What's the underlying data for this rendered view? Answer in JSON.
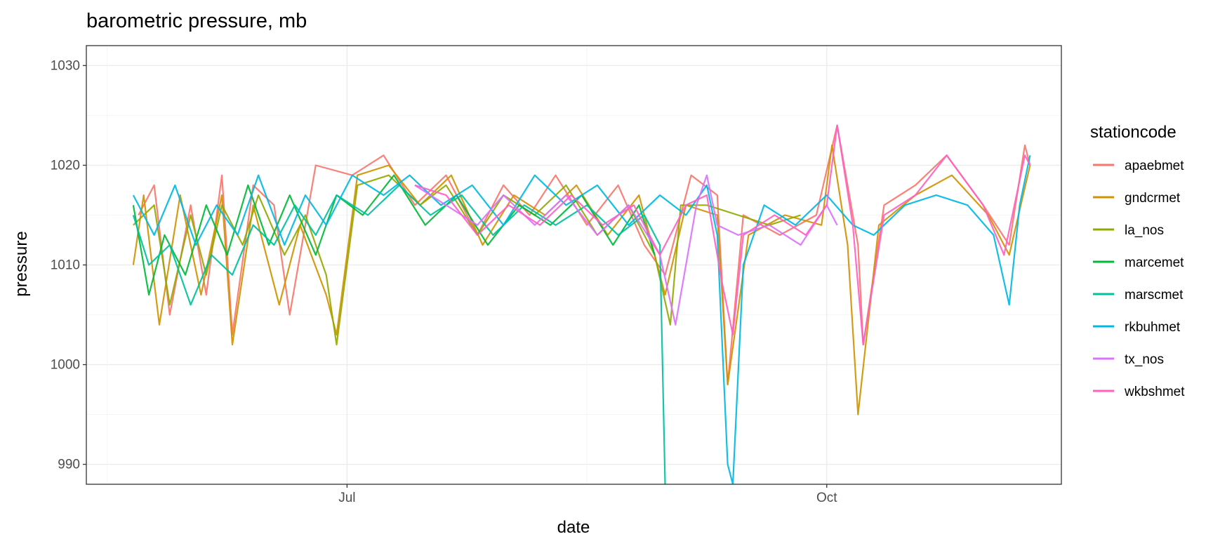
{
  "chart_data": {
    "type": "line",
    "title": "barometric pressure, mb",
    "xlabel": "date",
    "ylabel": "pressure",
    "legend_title": "stationcode",
    "legend_position": "right",
    "grid": true,
    "ylim": [
      988,
      1032
    ],
    "yticks": [
      990,
      1000,
      1010,
      1020,
      1030
    ],
    "xlim": [
      "2021-05-12",
      "2021-11-15"
    ],
    "xticks": [
      {
        "date": "2021-07-01",
        "label": "Jul"
      },
      {
        "date": "2021-10-01",
        "label": "Oct"
      }
    ],
    "x_minor_gridlines": [
      "2021-05-16",
      "2021-08-16"
    ],
    "series": [
      {
        "name": "apaebmet",
        "color": "#F8766D",
        "points": [
          [
            "2021-05-22",
            1015
          ],
          [
            "2021-05-25",
            1018
          ],
          [
            "2021-05-28",
            1005
          ],
          [
            "2021-06-01",
            1016
          ],
          [
            "2021-06-04",
            1007
          ],
          [
            "2021-06-07",
            1019
          ],
          [
            "2021-06-09",
            1003
          ],
          [
            "2021-06-13",
            1018
          ],
          [
            "2021-06-17",
            1016
          ],
          [
            "2021-06-20",
            1005
          ],
          [
            "2021-06-25",
            1020
          ],
          [
            "2021-07-02",
            1019
          ],
          [
            "2021-07-08",
            1021
          ],
          [
            "2021-07-14",
            1016
          ],
          [
            "2021-07-20",
            1019
          ],
          [
            "2021-07-26",
            1013
          ],
          [
            "2021-07-31",
            1018
          ],
          [
            "2021-08-05",
            1015
          ],
          [
            "2021-08-10",
            1019
          ],
          [
            "2021-08-16",
            1014
          ],
          [
            "2021-08-22",
            1018
          ],
          [
            "2021-08-27",
            1012
          ],
          [
            "2021-08-31",
            1009
          ],
          [
            "2021-09-05",
            1019
          ],
          [
            "2021-09-10",
            1017
          ],
          [
            "2021-09-12",
            998
          ],
          [
            "2021-09-15",
            1015
          ],
          [
            "2021-09-22",
            1013
          ],
          [
            "2021-09-29",
            1015
          ],
          [
            "2021-10-03",
            1024
          ],
          [
            "2021-10-07",
            1012
          ],
          [
            "2021-10-08",
            1002
          ],
          [
            "2021-10-12",
            1016
          ],
          [
            "2021-10-18",
            1018
          ],
          [
            "2021-10-24",
            1021
          ],
          [
            "2021-10-31",
            1016
          ],
          [
            "2021-11-05",
            1012
          ],
          [
            "2021-11-08",
            1022
          ],
          [
            "2021-11-09",
            1020
          ]
        ]
      },
      {
        "name": "gndcrmet",
        "color": "#D39200",
        "points": [
          [
            "2021-05-21",
            1010
          ],
          [
            "2021-05-23",
            1017
          ],
          [
            "2021-05-26",
            1004
          ],
          [
            "2021-05-30",
            1017
          ],
          [
            "2021-06-03",
            1007
          ],
          [
            "2021-06-07",
            1017
          ],
          [
            "2021-06-09",
            1002
          ],
          [
            "2021-06-13",
            1016
          ],
          [
            "2021-06-18",
            1006
          ],
          [
            "2021-06-22",
            1014
          ],
          [
            "2021-06-27",
            1007
          ],
          [
            "2021-06-29",
            1003
          ],
          [
            "2021-07-03",
            1019
          ],
          [
            "2021-07-09",
            1020
          ],
          [
            "2021-07-15",
            1016
          ],
          [
            "2021-07-21",
            1019
          ],
          [
            "2021-07-27",
            1012
          ],
          [
            "2021-08-02",
            1017
          ],
          [
            "2021-08-08",
            1015
          ],
          [
            "2021-08-14",
            1018
          ],
          [
            "2021-08-20",
            1013
          ],
          [
            "2021-08-26",
            1017
          ],
          [
            "2021-08-31",
            1007
          ],
          [
            "2021-09-04",
            1016
          ],
          [
            "2021-09-10",
            1015
          ],
          [
            "2021-09-12",
            998
          ],
          [
            "2021-09-16",
            1013
          ],
          [
            "2021-09-23",
            1015
          ],
          [
            "2021-09-30",
            1014
          ],
          [
            "2021-10-02",
            1022
          ],
          [
            "2021-10-05",
            1012
          ],
          [
            "2021-10-07",
            995
          ],
          [
            "2021-10-11",
            1014
          ],
          [
            "2021-10-18",
            1017
          ],
          [
            "2021-10-25",
            1019
          ],
          [
            "2021-11-01",
            1015
          ],
          [
            "2021-11-05",
            1011
          ],
          [
            "2021-11-09",
            1020
          ]
        ]
      },
      {
        "name": "la_nos",
        "color": "#93AA00",
        "points": [
          [
            "2021-05-21",
            1014
          ],
          [
            "2021-05-25",
            1016
          ],
          [
            "2021-05-28",
            1006
          ],
          [
            "2021-06-01",
            1015
          ],
          [
            "2021-06-04",
            1009
          ],
          [
            "2021-06-07",
            1016
          ],
          [
            "2021-06-11",
            1012
          ],
          [
            "2021-06-14",
            1017
          ],
          [
            "2021-06-19",
            1011
          ],
          [
            "2021-06-23",
            1015
          ],
          [
            "2021-06-27",
            1009
          ],
          [
            "2021-06-29",
            1002
          ],
          [
            "2021-07-03",
            1018
          ],
          [
            "2021-07-09",
            1019
          ],
          [
            "2021-07-15",
            1016
          ],
          [
            "2021-07-20",
            1018
          ],
          [
            "2021-07-26",
            1013
          ],
          [
            "2021-07-31",
            1017
          ],
          [
            "2021-08-06",
            1015
          ],
          [
            "2021-08-12",
            1018
          ],
          [
            "2021-08-18",
            1013
          ],
          [
            "2021-08-24",
            1016
          ],
          [
            "2021-08-29",
            1011
          ],
          [
            "2021-09-01",
            1004
          ],
          [
            "2021-09-03",
            1016
          ],
          [
            "2021-09-08",
            1016
          ],
          [
            "2021-09-14",
            1015
          ],
          [
            "2021-09-20",
            1014
          ],
          [
            "2021-09-26",
            1015
          ]
        ]
      },
      {
        "name": "marcemet",
        "color": "#00BA38",
        "points": [
          [
            "2021-05-21",
            1016
          ],
          [
            "2021-05-24",
            1007
          ],
          [
            "2021-05-27",
            1013
          ],
          [
            "2021-05-31",
            1009
          ],
          [
            "2021-06-04",
            1016
          ],
          [
            "2021-06-08",
            1011
          ],
          [
            "2021-06-12",
            1018
          ],
          [
            "2021-06-16",
            1012
          ],
          [
            "2021-06-20",
            1017
          ],
          [
            "2021-06-25",
            1011
          ],
          [
            "2021-06-29",
            1017
          ],
          [
            "2021-07-04",
            1015
          ],
          [
            "2021-07-10",
            1019
          ],
          [
            "2021-07-16",
            1014
          ],
          [
            "2021-07-22",
            1017
          ],
          [
            "2021-07-28",
            1012
          ],
          [
            "2021-08-03",
            1016
          ],
          [
            "2021-08-09",
            1014
          ],
          [
            "2021-08-15",
            1017
          ],
          [
            "2021-08-21",
            1012
          ],
          [
            "2021-08-26",
            1016
          ],
          [
            "2021-08-29",
            1011
          ]
        ]
      },
      {
        "name": "marscmet",
        "color": "#00C19F",
        "points": [
          [
            "2021-05-21",
            1015
          ],
          [
            "2021-05-24",
            1010
          ],
          [
            "2021-05-28",
            1012
          ],
          [
            "2021-06-01",
            1006
          ],
          [
            "2021-06-05",
            1011
          ],
          [
            "2021-06-09",
            1009
          ],
          [
            "2021-06-13",
            1014
          ],
          [
            "2021-06-17",
            1012
          ],
          [
            "2021-06-21",
            1016
          ],
          [
            "2021-06-25",
            1013
          ],
          [
            "2021-06-29",
            1017
          ],
          [
            "2021-07-05",
            1015
          ],
          [
            "2021-07-11",
            1018
          ],
          [
            "2021-07-17",
            1015
          ],
          [
            "2021-07-23",
            1017
          ],
          [
            "2021-07-29",
            1013
          ],
          [
            "2021-08-04",
            1016
          ],
          [
            "2021-08-10",
            1014
          ],
          [
            "2021-08-16",
            1016
          ],
          [
            "2021-08-22",
            1013
          ],
          [
            "2021-08-27",
            1015
          ],
          [
            "2021-08-30",
            1012
          ],
          [
            "2021-08-31",
            988
          ]
        ]
      },
      {
        "name": "rkbuhmet",
        "color": "#00B9E3",
        "points": [
          [
            "2021-05-21",
            1017
          ],
          [
            "2021-05-25",
            1013
          ],
          [
            "2021-05-29",
            1018
          ],
          [
            "2021-06-02",
            1012
          ],
          [
            "2021-06-06",
            1016
          ],
          [
            "2021-06-10",
            1013
          ],
          [
            "2021-06-14",
            1019
          ],
          [
            "2021-06-19",
            1012
          ],
          [
            "2021-06-23",
            1017
          ],
          [
            "2021-06-27",
            1014
          ],
          [
            "2021-07-02",
            1019
          ],
          [
            "2021-07-08",
            1017
          ],
          [
            "2021-07-13",
            1019
          ],
          [
            "2021-07-19",
            1016
          ],
          [
            "2021-07-25",
            1018
          ],
          [
            "2021-07-31",
            1014
          ],
          [
            "2021-08-06",
            1019
          ],
          [
            "2021-08-12",
            1016
          ],
          [
            "2021-08-18",
            1018
          ],
          [
            "2021-08-24",
            1014
          ],
          [
            "2021-08-30",
            1017
          ],
          [
            "2021-09-04",
            1015
          ],
          [
            "2021-09-08",
            1018
          ],
          [
            "2021-09-10",
            1013
          ],
          [
            "2021-09-12",
            990
          ],
          [
            "2021-09-13",
            988
          ],
          [
            "2021-09-15",
            1010
          ],
          [
            "2021-09-19",
            1016
          ],
          [
            "2021-09-25",
            1014
          ],
          [
            "2021-10-01",
            1017
          ],
          [
            "2021-10-06",
            1014
          ],
          [
            "2021-10-10",
            1013
          ],
          [
            "2021-10-16",
            1016
          ],
          [
            "2021-10-22",
            1017
          ],
          [
            "2021-10-28",
            1016
          ],
          [
            "2021-11-02",
            1013
          ],
          [
            "2021-11-05",
            1006
          ],
          [
            "2021-11-07",
            1016
          ],
          [
            "2021-11-09",
            1021
          ]
        ]
      },
      {
        "name": "tx_nos",
        "color": "#DB72FB",
        "points": [
          [
            "2021-07-14",
            1018
          ],
          [
            "2021-07-20",
            1016
          ],
          [
            "2021-07-26",
            1014
          ],
          [
            "2021-07-31",
            1017
          ],
          [
            "2021-08-06",
            1014
          ],
          [
            "2021-08-12",
            1017
          ],
          [
            "2021-08-18",
            1013
          ],
          [
            "2021-08-24",
            1016
          ],
          [
            "2021-08-30",
            1011
          ],
          [
            "2021-09-02",
            1004
          ],
          [
            "2021-09-06",
            1016
          ],
          [
            "2021-09-08",
            1019
          ],
          [
            "2021-09-10",
            1014
          ],
          [
            "2021-09-14",
            1013
          ],
          [
            "2021-09-20",
            1014
          ],
          [
            "2021-09-26",
            1012
          ],
          [
            "2021-10-01",
            1016
          ],
          [
            "2021-10-03",
            1014
          ]
        ]
      },
      {
        "name": "wkbshmet",
        "color": "#FF61C3",
        "points": [
          [
            "2021-07-14",
            1018
          ],
          [
            "2021-07-20",
            1017
          ],
          [
            "2021-07-26",
            1013
          ],
          [
            "2021-08-01",
            1016
          ],
          [
            "2021-08-07",
            1014
          ],
          [
            "2021-08-13",
            1017
          ],
          [
            "2021-08-19",
            1014
          ],
          [
            "2021-08-25",
            1016
          ],
          [
            "2021-08-30",
            1011
          ],
          [
            "2021-09-04",
            1016
          ],
          [
            "2021-09-08",
            1017
          ],
          [
            "2021-09-11",
            1008
          ],
          [
            "2021-09-13",
            1003
          ],
          [
            "2021-09-15",
            1013
          ],
          [
            "2021-09-21",
            1015
          ],
          [
            "2021-09-27",
            1013
          ],
          [
            "2021-10-01",
            1016
          ],
          [
            "2021-10-03",
            1024
          ],
          [
            "2021-10-06",
            1014
          ],
          [
            "2021-10-08",
            1002
          ],
          [
            "2021-10-12",
            1015
          ],
          [
            "2021-10-18",
            1017
          ],
          [
            "2021-10-24",
            1021
          ],
          [
            "2021-10-31",
            1016
          ],
          [
            "2021-11-04",
            1011
          ],
          [
            "2021-11-08",
            1021
          ],
          [
            "2021-11-09",
            1020
          ]
        ]
      }
    ]
  }
}
